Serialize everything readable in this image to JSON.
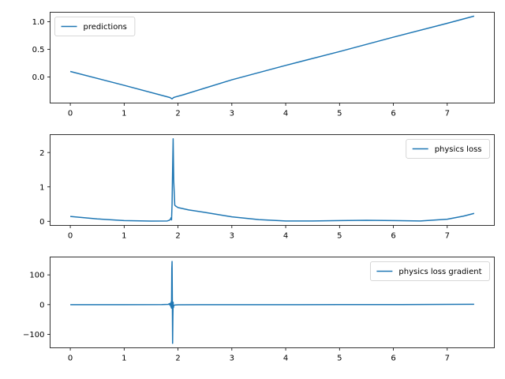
{
  "chart_data": [
    {
      "type": "line",
      "title": "",
      "xlabel": "",
      "ylabel": "",
      "xlim": [
        -0.375,
        7.875
      ],
      "ylim": [
        -0.47,
        1.17
      ],
      "xticks": [
        0,
        1,
        2,
        3,
        4,
        5,
        6,
        7
      ],
      "yticks": [
        0.0,
        0.5,
        1.0
      ],
      "ytick_labels": [
        "0.0",
        "0.5",
        "1.0"
      ],
      "legend_position": "upper-left",
      "color": "#1f77b4",
      "series": [
        {
          "name": "predictions",
          "x": [
            0,
            1.0,
            1.85,
            1.89,
            1.92,
            1.95,
            2.1,
            3.0,
            4.0,
            5.0,
            6.0,
            7.0,
            7.5
          ],
          "y": [
            0.1,
            -0.15,
            -0.37,
            -0.395,
            -0.37,
            -0.36,
            -0.32,
            -0.05,
            0.21,
            0.46,
            0.72,
            0.97,
            1.1
          ]
        }
      ]
    },
    {
      "type": "line",
      "title": "",
      "xlabel": "",
      "ylabel": "",
      "xlim": [
        -0.375,
        7.875
      ],
      "ylim": [
        -0.12,
        2.52
      ],
      "xticks": [
        0,
        1,
        2,
        3,
        4,
        5,
        6,
        7
      ],
      "yticks": [
        0,
        1,
        2
      ],
      "ytick_labels": [
        "0",
        "1",
        "2"
      ],
      "legend_position": "upper-right",
      "color": "#1f77b4",
      "series": [
        {
          "name": "physics loss",
          "x": [
            0,
            0.5,
            1.0,
            1.5,
            1.8,
            1.84,
            1.86,
            1.87,
            1.88,
            1.89,
            1.9,
            1.91,
            1.92,
            1.94,
            1.96,
            2.0,
            2.2,
            2.5,
            3.0,
            3.5,
            4.0,
            4.5,
            5.0,
            5.5,
            6.0,
            6.5,
            7.0,
            7.3,
            7.5
          ],
          "y": [
            0.14,
            0.07,
            0.02,
            0.005,
            0.01,
            0.03,
            0.06,
            0.1,
            0.04,
            0.5,
            1.5,
            2.4,
            1.2,
            0.47,
            0.44,
            0.4,
            0.33,
            0.26,
            0.13,
            0.05,
            0.01,
            0.01,
            0.02,
            0.03,
            0.02,
            0.01,
            0.06,
            0.15,
            0.23
          ]
        }
      ]
    },
    {
      "type": "line",
      "title": "",
      "xlabel": "",
      "ylabel": "",
      "xlim": [
        -0.375,
        7.875
      ],
      "ylim": [
        -145,
        160
      ],
      "xticks": [
        0,
        1,
        2,
        3,
        4,
        5,
        6,
        7
      ],
      "yticks": [
        -100,
        0,
        100
      ],
      "ytick_labels": [
        "−100",
        "0",
        "100"
      ],
      "legend_position": "upper-right",
      "color": "#1f77b4",
      "series": [
        {
          "name": "physics loss gradient",
          "x": [
            0,
            1.0,
            1.7,
            1.82,
            1.84,
            1.85,
            1.86,
            1.87,
            1.875,
            1.88,
            1.885,
            1.89,
            1.895,
            1.9,
            1.905,
            1.91,
            1.915,
            1.92,
            1.93,
            1.95,
            2.0,
            2.5,
            3.0,
            4.0,
            5.0,
            6.0,
            7.0,
            7.5
          ],
          "y": [
            0,
            0,
            0.2,
            1,
            3,
            -2,
            5,
            -8,
            10,
            -12,
            120,
            145,
            20,
            -130,
            -40,
            8,
            -10,
            -4,
            -2,
            -1,
            -0.5,
            -0.2,
            0,
            0,
            0.1,
            0.2,
            0.8,
            1.2
          ]
        }
      ]
    }
  ]
}
